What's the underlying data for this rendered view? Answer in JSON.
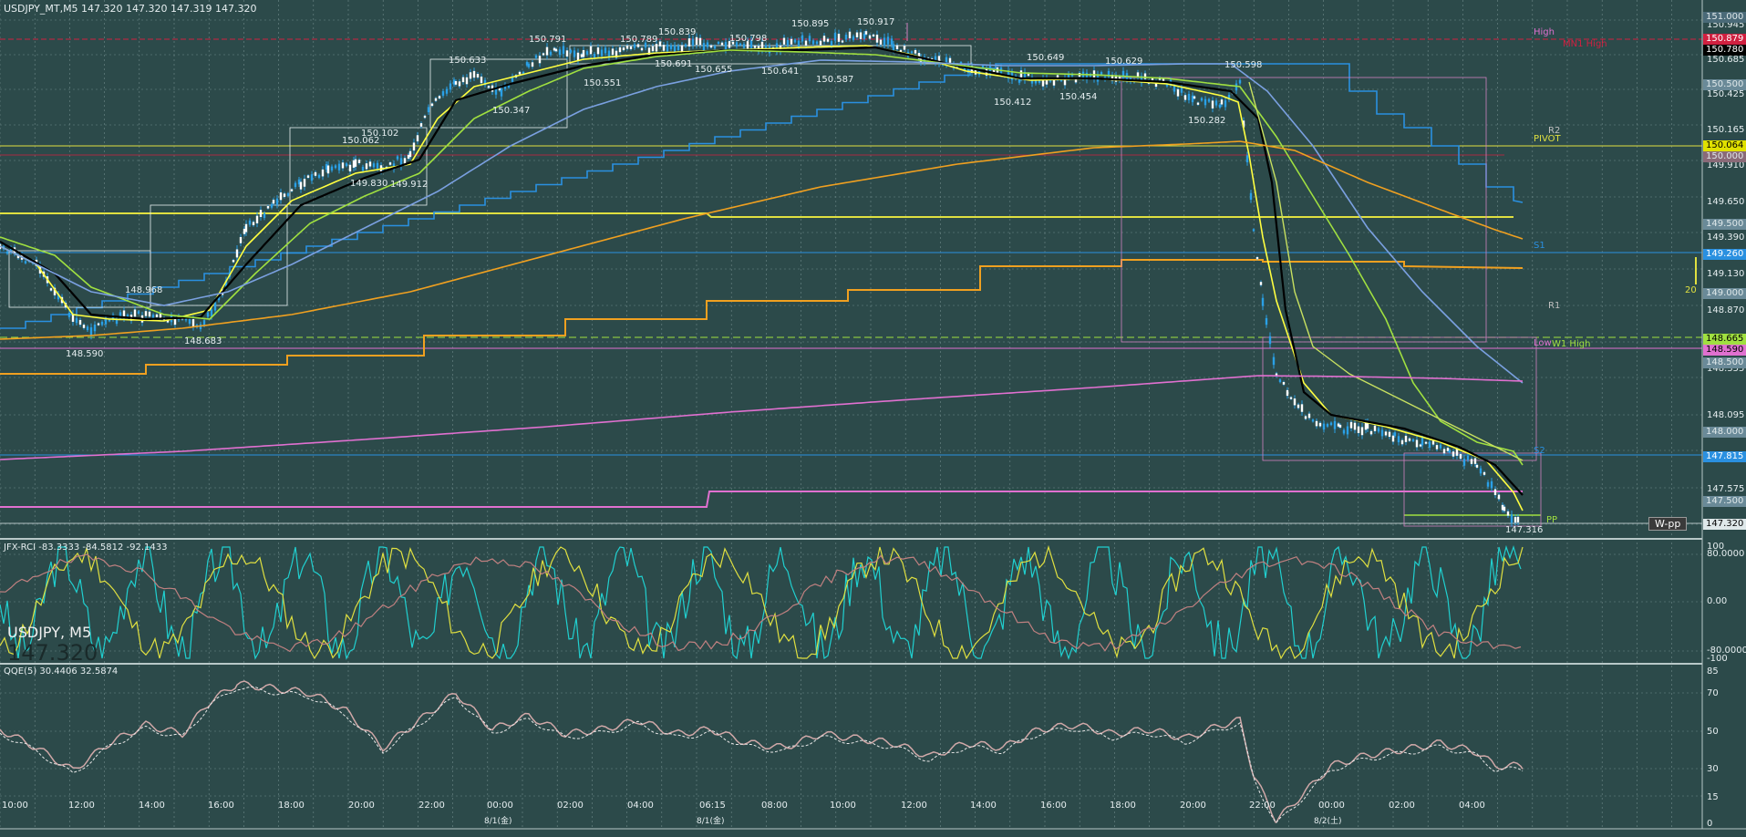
{
  "header": {
    "main_title": "USDJPY_MT,M5  147.320 147.320 147.319 147.320",
    "rci_title": "JFX-RCI -83.3333 -84.5812 -92.1433",
    "qqe_title": "QQE(5) 30.4406 32.5874"
  },
  "watermark": {
    "symbol": "USDJPY, M5",
    "price": "147.320"
  },
  "colors": {
    "background": "#2c4a4a",
    "grid": "#6f8a8a",
    "candle": "#2aa0e6",
    "ma_fast": "#ffff40",
    "ma_mid": "#000000",
    "ma_slow": "#a0e040",
    "ma_long": "#7aa0e0",
    "ma_orange": "#f0a020",
    "pink": "#e070d0",
    "rci_cyan": "#20d0d0",
    "rci_yellow": "#e0e040",
    "rci_brown": "#c08080"
  },
  "price_axis": {
    "ticks": [
      "150.945",
      "150.685",
      "150.425",
      "150.165",
      "149.910",
      "149.650",
      "149.390",
      "149.130",
      "148.870",
      "148.610",
      "148.355",
      "148.095",
      "147.835",
      "147.575",
      "147.320"
    ],
    "badges": [
      {
        "text": "151.000",
        "bg": "#4a6a78",
        "fg": "#dfe8ea"
      },
      {
        "text": "150.879",
        "bg": "#d02040",
        "fg": "#ffffff"
      },
      {
        "text": "150.780",
        "bg": "#000000",
        "fg": "#ffffff"
      },
      {
        "text": "150.500",
        "bg": "#6a8a98",
        "fg": "#dfe8ea"
      },
      {
        "text": "150.064",
        "bg": "#e0e000",
        "fg": "#000000"
      },
      {
        "text": "150.000",
        "bg": "#8a6a78",
        "fg": "#dfe8ea"
      },
      {
        "text": "149.500",
        "bg": "#6a8a98",
        "fg": "#dfe8ea"
      },
      {
        "text": "149.260",
        "bg": "#2a90e0",
        "fg": "#ffffff"
      },
      {
        "text": "149.000",
        "bg": "#6a8a98",
        "fg": "#dfe8ea"
      },
      {
        "text": "148.665",
        "bg": "#a0e040",
        "fg": "#000000"
      },
      {
        "text": "148.590",
        "bg": "#e070d0",
        "fg": "#000000"
      },
      {
        "text": "148.500",
        "bg": "#6a8a98",
        "fg": "#dfe8ea"
      },
      {
        "text": "148.000",
        "bg": "#6a8a98",
        "fg": "#dfe8ea"
      },
      {
        "text": "147.815",
        "bg": "#2a90e0",
        "fg": "#ffffff"
      },
      {
        "text": "147.500",
        "bg": "#6a8a98",
        "fg": "#dfe8ea"
      },
      {
        "text": "147.320",
        "bg": "#dfe8ea",
        "fg": "#000000"
      }
    ]
  },
  "rci_axis": {
    "ticks": [
      "100",
      "80.0000",
      "0.00",
      "-80.0000",
      "-100"
    ]
  },
  "qqe_axis": {
    "ticks": [
      "85",
      "70",
      "50",
      "30",
      "15",
      "0"
    ]
  },
  "time_axis": {
    "ticks": [
      "10:00",
      "12:00",
      "14:00",
      "16:00",
      "18:00",
      "20:00",
      "22:00",
      "00:00",
      "02:00",
      "04:00",
      "06:15",
      "08:00",
      "10:00",
      "12:00",
      "14:00",
      "16:00",
      "18:00",
      "20:00",
      "22:00",
      "00:00",
      "02:00",
      "04:00"
    ],
    "dates": [
      "8/1(金)",
      "8/1(金)",
      "8/2(土)"
    ]
  },
  "price_labels": [
    "150.917",
    "150.895",
    "150.839",
    "150.798",
    "150.791",
    "150.789",
    "150.691",
    "150.655",
    "150.641",
    "150.587",
    "150.551",
    "150.633",
    "150.347",
    "150.102",
    "150.062",
    "149.830",
    "149.912",
    "148.968",
    "148.590",
    "148.683",
    "150.649",
    "150.629",
    "150.598",
    "150.412",
    "150.454",
    "150.282",
    "147.316"
  ],
  "level_labels": {
    "high": "High",
    "mn1_high": "MN1 High",
    "r2": "R2",
    "pivot": "PIVOT",
    "s1": "S1",
    "r1": "R1",
    "low": "Low",
    "w1_high": "W1 High",
    "s2": "S2",
    "pp": "PP",
    "wpp": "W-pp",
    "counter": "20"
  }
}
